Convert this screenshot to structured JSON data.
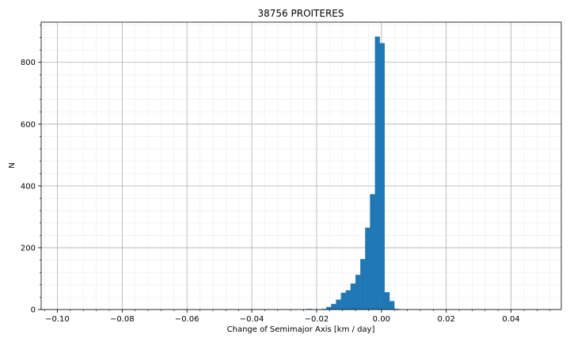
{
  "chart_data": {
    "type": "bar",
    "title": "38756 PROITERES",
    "xlabel": "Change of Semimajor Axis [km / day]",
    "ylabel": "N",
    "xlim": [
      -0.105,
      0.0555
    ],
    "ylim": [
      0,
      930
    ],
    "x_ticks": [
      -0.1,
      -0.08,
      -0.06,
      -0.04,
      -0.02,
      0.0,
      0.02,
      0.04
    ],
    "x_tick_labels": [
      "−0.10",
      "−0.08",
      "−0.06",
      "−0.04",
      "−0.02",
      "0.00",
      "0.02",
      "0.04"
    ],
    "y_ticks": [
      0,
      200,
      400,
      600,
      800
    ],
    "y_tick_labels": [
      "0",
      "200",
      "400",
      "600",
      "800"
    ],
    "grid": true,
    "minor_grid": true,
    "bar_color": "#1f77b4",
    "bin_width": 0.0015,
    "bins": [
      {
        "x0": -0.023,
        "x1": -0.0215,
        "count": 2
      },
      {
        "x0": -0.0185,
        "x1": -0.017,
        "count": 2
      },
      {
        "x0": -0.017,
        "x1": -0.0155,
        "count": 8
      },
      {
        "x0": -0.0155,
        "x1": -0.014,
        "count": 18
      },
      {
        "x0": -0.014,
        "x1": -0.0125,
        "count": 32
      },
      {
        "x0": -0.0125,
        "x1": -0.011,
        "count": 54
      },
      {
        "x0": -0.011,
        "x1": -0.0095,
        "count": 62
      },
      {
        "x0": -0.0095,
        "x1": -0.008,
        "count": 84
      },
      {
        "x0": -0.008,
        "x1": -0.0065,
        "count": 112
      },
      {
        "x0": -0.0065,
        "x1": -0.005,
        "count": 163
      },
      {
        "x0": -0.005,
        "x1": -0.0035,
        "count": 265
      },
      {
        "x0": -0.0035,
        "x1": -0.002,
        "count": 373
      },
      {
        "x0": -0.002,
        "x1": -0.0005,
        "count": 883
      },
      {
        "x0": -0.0005,
        "x1": 0.001,
        "count": 862
      },
      {
        "x0": 0.001,
        "x1": 0.0025,
        "count": 56
      },
      {
        "x0": 0.0025,
        "x1": 0.004,
        "count": 27
      },
      {
        "x0": 0.004,
        "x1": 0.0055,
        "count": 2
      }
    ]
  }
}
